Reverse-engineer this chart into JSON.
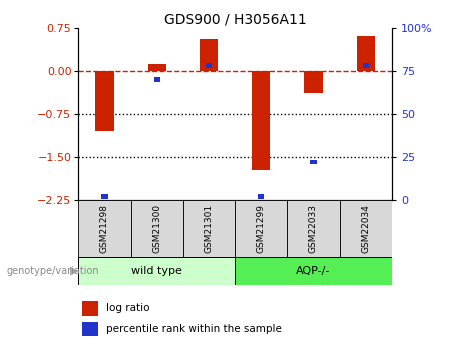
{
  "title": "GDS900 / H3056A11",
  "categories": [
    "GSM21298",
    "GSM21300",
    "GSM21301",
    "GSM21299",
    "GSM22033",
    "GSM22034"
  ],
  "log_ratios": [
    -1.05,
    0.12,
    0.55,
    -1.72,
    -0.38,
    0.6
  ],
  "percentile_ranks": [
    2,
    70,
    78,
    2,
    22,
    78
  ],
  "ylim_left": [
    -2.25,
    0.75
  ],
  "ylim_right": [
    0,
    100
  ],
  "right_ticks": [
    0,
    25,
    50,
    75,
    100
  ],
  "right_tick_labels": [
    "0",
    "25",
    "50",
    "75",
    "100%"
  ],
  "left_ticks": [
    -2.25,
    -1.5,
    -0.75,
    0,
    0.75
  ],
  "dotted_lines": [
    -0.75,
    -1.5
  ],
  "bar_color_red": "#cc2200",
  "bar_color_blue": "#2233cc",
  "dashed_line_color": "#cc2200",
  "dotted_line_color": "#000000",
  "group1_label": "wild type",
  "group2_label": "AQP-/-",
  "group1_color": "#ccffcc",
  "group2_color": "#55ee55",
  "group_label_prefix": "genotype/variation",
  "legend_red": "log ratio",
  "legend_blue": "percentile rank within the sample",
  "bar_width": 0.35,
  "percentile_bar_width": 0.12,
  "axis_label_color_left": "#cc2200",
  "axis_label_color_right": "#2233cc",
  "group1_indices": [
    0,
    1,
    2
  ],
  "group2_indices": [
    3,
    4,
    5
  ]
}
